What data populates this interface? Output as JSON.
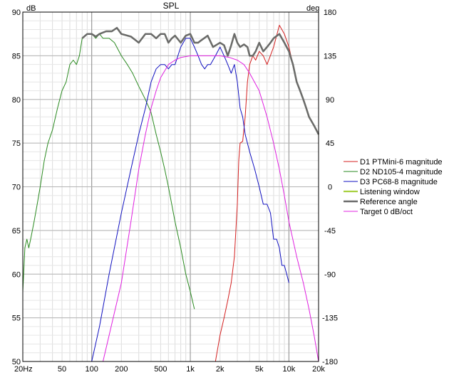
{
  "chart_data": {
    "type": "line",
    "title": "SPL",
    "y_unit_left": "dB",
    "y_unit_right": "deg",
    "x_scale": "log",
    "xlim": [
      20,
      20000
    ],
    "ylim_left": [
      50,
      90
    ],
    "ylim_right": [
      -180,
      180
    ],
    "grid": true,
    "legend_position": "right",
    "x_tick_labels": [
      {
        "value": 20,
        "label": "20Hz"
      },
      {
        "value": 50,
        "label": "50"
      },
      {
        "value": 100,
        "label": "100"
      },
      {
        "value": 200,
        "label": "200"
      },
      {
        "value": 500,
        "label": "500"
      },
      {
        "value": 1000,
        "label": "1k"
      },
      {
        "value": 2000,
        "label": "2k"
      },
      {
        "value": 5000,
        "label": "5k"
      },
      {
        "value": 10000,
        "label": "10k"
      },
      {
        "value": 20000,
        "label": "20k"
      }
    ],
    "y_ticks_left": [
      50,
      55,
      60,
      65,
      70,
      75,
      80,
      85,
      90
    ],
    "y_ticks_right": [
      -180,
      -135,
      -90,
      -45,
      0,
      45,
      90,
      135,
      180
    ],
    "series": [
      {
        "name": "D1 PTMini-6 magnitude",
        "color": "#d42020",
        "width": 1,
        "points": [
          [
            1800,
            50
          ],
          [
            2000,
            53
          ],
          [
            2200,
            55
          ],
          [
            2400,
            57
          ],
          [
            2600,
            59
          ],
          [
            2800,
            62
          ],
          [
            3000,
            68
          ],
          [
            3100,
            73
          ],
          [
            3200,
            75
          ],
          [
            3400,
            75.2
          ],
          [
            3600,
            78
          ],
          [
            3800,
            82
          ],
          [
            4000,
            84
          ],
          [
            4300,
            85
          ],
          [
            4600,
            84.5
          ],
          [
            5000,
            85.5
          ],
          [
            5500,
            85
          ],
          [
            6000,
            84
          ],
          [
            7000,
            86
          ],
          [
            8000,
            88.5
          ],
          [
            9000,
            87.5
          ],
          [
            10000,
            86
          ],
          [
            11000,
            84
          ],
          [
            12000,
            82
          ],
          [
            13000,
            81
          ],
          [
            14000,
            80
          ],
          [
            15000,
            79
          ],
          [
            16000,
            78
          ],
          [
            18000,
            77
          ],
          [
            20000,
            76
          ]
        ]
      },
      {
        "name": "D2 ND105-4 magnitude",
        "color": "#2a8a20",
        "width": 1,
        "points": [
          [
            20,
            58
          ],
          [
            21,
            63
          ],
          [
            22,
            64
          ],
          [
            23,
            63
          ],
          [
            24,
            64
          ],
          [
            26,
            66
          ],
          [
            28,
            68
          ],
          [
            30,
            70
          ],
          [
            33,
            73
          ],
          [
            36,
            75
          ],
          [
            40,
            76.5
          ],
          [
            45,
            79
          ],
          [
            50,
            81
          ],
          [
            55,
            82
          ],
          [
            60,
            84
          ],
          [
            65,
            84.5
          ],
          [
            70,
            84
          ],
          [
            75,
            85
          ],
          [
            80,
            87
          ],
          [
            90,
            87.5
          ],
          [
            100,
            87.5
          ],
          [
            110,
            87
          ],
          [
            120,
            87.5
          ],
          [
            130,
            87
          ],
          [
            150,
            87
          ],
          [
            170,
            86.5
          ],
          [
            200,
            85
          ],
          [
            230,
            84
          ],
          [
            260,
            83
          ],
          [
            300,
            81.5
          ],
          [
            350,
            80
          ],
          [
            400,
            78.5
          ],
          [
            450,
            76
          ],
          [
            500,
            74
          ],
          [
            550,
            72
          ],
          [
            600,
            70
          ],
          [
            700,
            66
          ],
          [
            800,
            63
          ],
          [
            900,
            60
          ],
          [
            1000,
            58
          ],
          [
            1100,
            56
          ]
        ]
      },
      {
        "name": "D3 PC68-8 magnitude",
        "color": "#1010c0",
        "width": 1,
        "points": [
          [
            100,
            50
          ],
          [
            120,
            54
          ],
          [
            150,
            60
          ],
          [
            200,
            67
          ],
          [
            250,
            72
          ],
          [
            300,
            76
          ],
          [
            350,
            79
          ],
          [
            400,
            82
          ],
          [
            450,
            83.5
          ],
          [
            500,
            84
          ],
          [
            550,
            84
          ],
          [
            600,
            83.5
          ],
          [
            650,
            84
          ],
          [
            700,
            84
          ],
          [
            800,
            86
          ],
          [
            900,
            87
          ],
          [
            1000,
            87
          ],
          [
            1100,
            86
          ],
          [
            1200,
            85
          ],
          [
            1300,
            84
          ],
          [
            1400,
            83.5
          ],
          [
            1500,
            84
          ],
          [
            1600,
            84
          ],
          [
            1800,
            85
          ],
          [
            2000,
            86
          ],
          [
            2200,
            85
          ],
          [
            2400,
            84
          ],
          [
            2600,
            83
          ],
          [
            2800,
            84
          ],
          [
            3000,
            82
          ],
          [
            3200,
            79
          ],
          [
            3400,
            78
          ],
          [
            3600,
            76
          ],
          [
            4000,
            74
          ],
          [
            4500,
            72
          ],
          [
            5000,
            70
          ],
          [
            5500,
            68
          ],
          [
            6000,
            68
          ],
          [
            6500,
            67
          ],
          [
            7000,
            64
          ],
          [
            7500,
            64
          ],
          [
            8000,
            63
          ],
          [
            8500,
            61
          ],
          [
            9000,
            61
          ],
          [
            9500,
            60
          ],
          [
            10000,
            59
          ]
        ]
      },
      {
        "name": "Listening window",
        "color": "#a8d040",
        "width": 2.2,
        "points": [
          [
            80,
            87
          ],
          [
            90,
            87.5
          ],
          [
            100,
            87.5
          ],
          [
            110,
            87.2
          ],
          [
            120,
            87.5
          ],
          [
            140,
            87.8
          ],
          [
            160,
            87.8
          ],
          [
            180,
            88.2
          ],
          [
            200,
            87.5
          ],
          [
            250,
            87.2
          ],
          [
            300,
            86.5
          ],
          [
            350,
            87.5
          ],
          [
            400,
            87.5
          ],
          [
            450,
            87
          ],
          [
            500,
            87.5
          ],
          [
            550,
            87.5
          ],
          [
            600,
            86.5
          ],
          [
            650,
            87
          ],
          [
            700,
            87.3
          ],
          [
            800,
            86.5
          ],
          [
            900,
            87.3
          ],
          [
            1000,
            87.5
          ],
          [
            1100,
            86.5
          ],
          [
            1200,
            86.5
          ],
          [
            1300,
            86.8
          ],
          [
            1500,
            87.3
          ],
          [
            1700,
            86
          ],
          [
            2000,
            86.5
          ],
          [
            2200,
            86.2
          ],
          [
            2400,
            85
          ],
          [
            2600,
            86.2
          ],
          [
            2800,
            87.5
          ],
          [
            3000,
            86.5
          ],
          [
            3200,
            86
          ],
          [
            3500,
            86.3
          ],
          [
            3800,
            86
          ],
          [
            4000,
            85
          ],
          [
            4300,
            85
          ],
          [
            4600,
            85.5
          ],
          [
            5000,
            86.5
          ],
          [
            5500,
            85.5
          ],
          [
            6000,
            86
          ],
          [
            6500,
            86.5
          ],
          [
            7000,
            87
          ],
          [
            8000,
            87.5
          ],
          [
            9000,
            86.5
          ],
          [
            10000,
            85.5
          ],
          [
            11000,
            84
          ],
          [
            12000,
            82
          ],
          [
            13000,
            81
          ],
          [
            14000,
            80
          ],
          [
            15000,
            79
          ],
          [
            16000,
            78
          ],
          [
            18000,
            77
          ],
          [
            20000,
            76
          ]
        ]
      },
      {
        "name": "Reference angle",
        "color": "#6a6a6a",
        "width": 2.5,
        "points": [
          [
            80,
            87
          ],
          [
            90,
            87.5
          ],
          [
            100,
            87.5
          ],
          [
            110,
            87.2
          ],
          [
            120,
            87.5
          ],
          [
            140,
            87.8
          ],
          [
            160,
            87.8
          ],
          [
            180,
            88.2
          ],
          [
            200,
            87.5
          ],
          [
            250,
            87.2
          ],
          [
            300,
            86.5
          ],
          [
            350,
            87.5
          ],
          [
            400,
            87.5
          ],
          [
            450,
            87
          ],
          [
            500,
            87.5
          ],
          [
            550,
            87.5
          ],
          [
            600,
            86.5
          ],
          [
            650,
            87
          ],
          [
            700,
            87.3
          ],
          [
            800,
            86.5
          ],
          [
            900,
            87.3
          ],
          [
            1000,
            87.5
          ],
          [
            1100,
            86.5
          ],
          [
            1200,
            86.5
          ],
          [
            1300,
            86.8
          ],
          [
            1500,
            87.3
          ],
          [
            1700,
            86
          ],
          [
            2000,
            86.5
          ],
          [
            2200,
            86.2
          ],
          [
            2400,
            85
          ],
          [
            2600,
            86.2
          ],
          [
            2800,
            87.5
          ],
          [
            3000,
            86.5
          ],
          [
            3200,
            86
          ],
          [
            3500,
            86.3
          ],
          [
            3800,
            86
          ],
          [
            4000,
            85
          ],
          [
            4300,
            85
          ],
          [
            4600,
            85.5
          ],
          [
            5000,
            86.5
          ],
          [
            5500,
            85.5
          ],
          [
            6000,
            86
          ],
          [
            6500,
            86.5
          ],
          [
            7000,
            87
          ],
          [
            8000,
            87.5
          ],
          [
            9000,
            86.5
          ],
          [
            10000,
            85.5
          ],
          [
            11000,
            84
          ],
          [
            12000,
            82
          ],
          [
            13000,
            81
          ],
          [
            14000,
            80
          ],
          [
            15000,
            79
          ],
          [
            16000,
            78
          ],
          [
            18000,
            77
          ],
          [
            20000,
            76
          ]
        ]
      },
      {
        "name": "Target 0 dB/oct",
        "color": "#e020e0",
        "width": 1,
        "points": [
          [
            130,
            50
          ],
          [
            150,
            53
          ],
          [
            200,
            59
          ],
          [
            250,
            66
          ],
          [
            300,
            72
          ],
          [
            350,
            76
          ],
          [
            400,
            79
          ],
          [
            450,
            81
          ],
          [
            500,
            82.5
          ],
          [
            600,
            84
          ],
          [
            700,
            84.5
          ],
          [
            800,
            84.8
          ],
          [
            1000,
            85
          ],
          [
            1500,
            85
          ],
          [
            2000,
            85
          ],
          [
            2500,
            84.8
          ],
          [
            3000,
            84.5
          ],
          [
            3500,
            84
          ],
          [
            4000,
            83
          ],
          [
            5000,
            81
          ],
          [
            6000,
            78
          ],
          [
            7000,
            75
          ],
          [
            8000,
            72
          ],
          [
            9000,
            69
          ],
          [
            10000,
            66
          ],
          [
            12000,
            62
          ],
          [
            14000,
            59
          ],
          [
            16000,
            56
          ],
          [
            18000,
            53
          ],
          [
            20000,
            50
          ]
        ]
      }
    ]
  }
}
